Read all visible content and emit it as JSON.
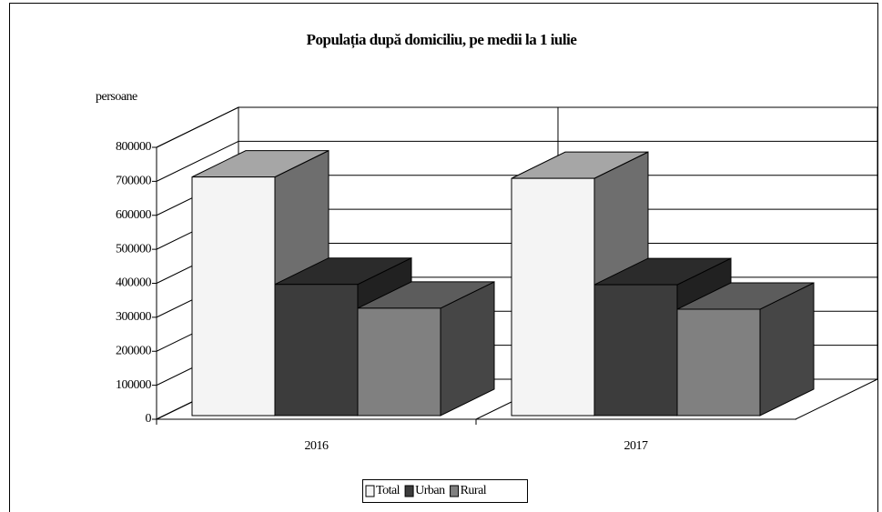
{
  "chart_data": {
    "type": "bar3d",
    "title": "Populația după domiciliu, pe medii la 1 iulie",
    "y_label": "persoane",
    "categories": [
      "2016",
      "2017"
    ],
    "series": [
      {
        "name": "Total",
        "color": "#f4f4f4",
        "values": [
          702000,
          698000
        ]
      },
      {
        "name": "Urban",
        "color": "#3c3c3c",
        "values": [
          386000,
          385000
        ]
      },
      {
        "name": "Rural",
        "color": "#808080",
        "values": [
          316000,
          313000
        ]
      }
    ],
    "ylim": [
      0,
      800000
    ],
    "yticks": [
      0,
      100000,
      200000,
      300000,
      400000,
      500000,
      600000,
      700000,
      800000
    ],
    "grid": true,
    "legend": "bottom"
  }
}
